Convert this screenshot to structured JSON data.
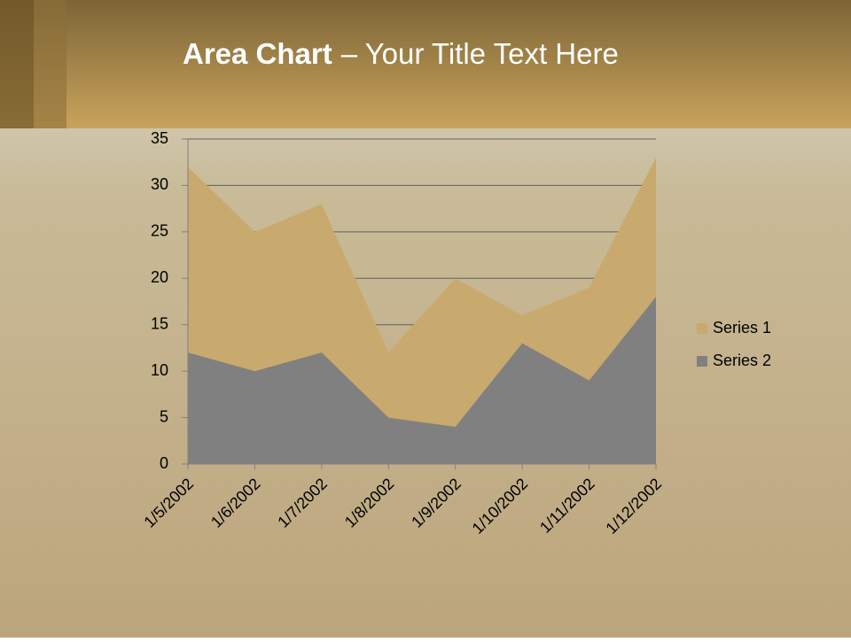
{
  "slide": {
    "title_bold": "Area Chart",
    "title_rest": "– Your Title Text Here"
  },
  "chart_data": {
    "type": "area",
    "categories": [
      "1/5/2002",
      "1/6/2002",
      "1/7/2002",
      "1/8/2002",
      "1/9/2002",
      "1/10/2002",
      "1/11/2002",
      "1/12/2002"
    ],
    "series": [
      {
        "name": "Series 1",
        "color": "#c8aa6e",
        "values": [
          32,
          25,
          28,
          12,
          20,
          16,
          19,
          33
        ]
      },
      {
        "name": "Series 2",
        "color": "#808080",
        "values": [
          12,
          10,
          12,
          5,
          4,
          13,
          9,
          18
        ]
      }
    ],
    "ylim": [
      0,
      35
    ],
    "yticks": [
      0,
      5,
      10,
      15,
      20,
      25,
      30,
      35
    ],
    "grid": true,
    "legend": "right"
  }
}
